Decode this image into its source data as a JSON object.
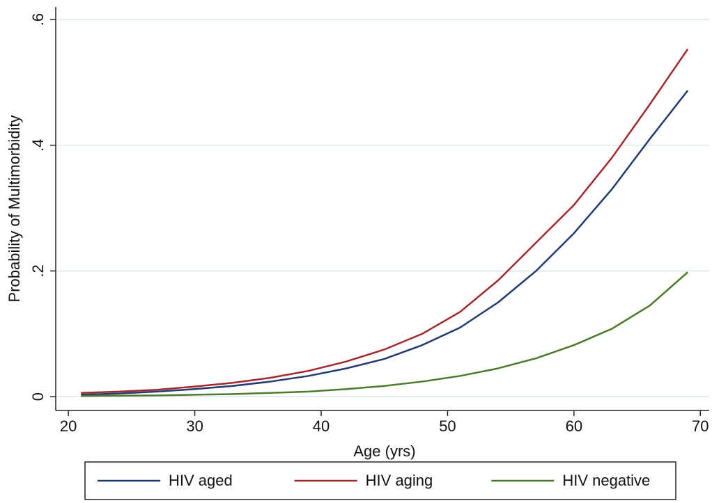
{
  "chart_data": {
    "type": "line",
    "x_label": "Age (yrs)",
    "y_label": "Probability of Multimorbidity",
    "x": [
      21,
      24,
      27,
      30,
      33,
      36,
      39,
      42,
      45,
      48,
      51,
      54,
      57,
      60,
      63,
      66,
      69
    ],
    "series": [
      {
        "name": "HIV aged",
        "color": "#1f3a6e",
        "values": [
          0.003,
          0.005,
          0.008,
          0.012,
          0.017,
          0.024,
          0.033,
          0.045,
          0.06,
          0.082,
          0.11,
          0.15,
          0.2,
          0.26,
          0.33,
          0.41,
          0.487
        ]
      },
      {
        "name": "HIV aging",
        "color": "#a3262c",
        "values": [
          0.006,
          0.008,
          0.011,
          0.016,
          0.022,
          0.03,
          0.041,
          0.056,
          0.075,
          0.1,
          0.135,
          0.185,
          0.245,
          0.305,
          0.38,
          0.465,
          0.553
        ]
      },
      {
        "name": "HIV negative",
        "color": "#4a7a2a",
        "values": [
          0.001,
          0.0015,
          0.002,
          0.003,
          0.004,
          0.006,
          0.008,
          0.012,
          0.017,
          0.024,
          0.033,
          0.045,
          0.061,
          0.082,
          0.108,
          0.145,
          0.198
        ]
      }
    ],
    "xlim": [
      19,
      70.7
    ],
    "ylim": [
      -0.022,
      0.62
    ],
    "xticks": [
      20,
      30,
      40,
      50,
      60,
      70
    ],
    "yticks": [
      0,
      {
        "value": 0.2,
        "label": ".2"
      },
      {
        "value": 0.4,
        "label": ".4"
      },
      {
        "value": 0.6,
        "label": ".6"
      }
    ],
    "grid": true,
    "legend": "bottom"
  }
}
